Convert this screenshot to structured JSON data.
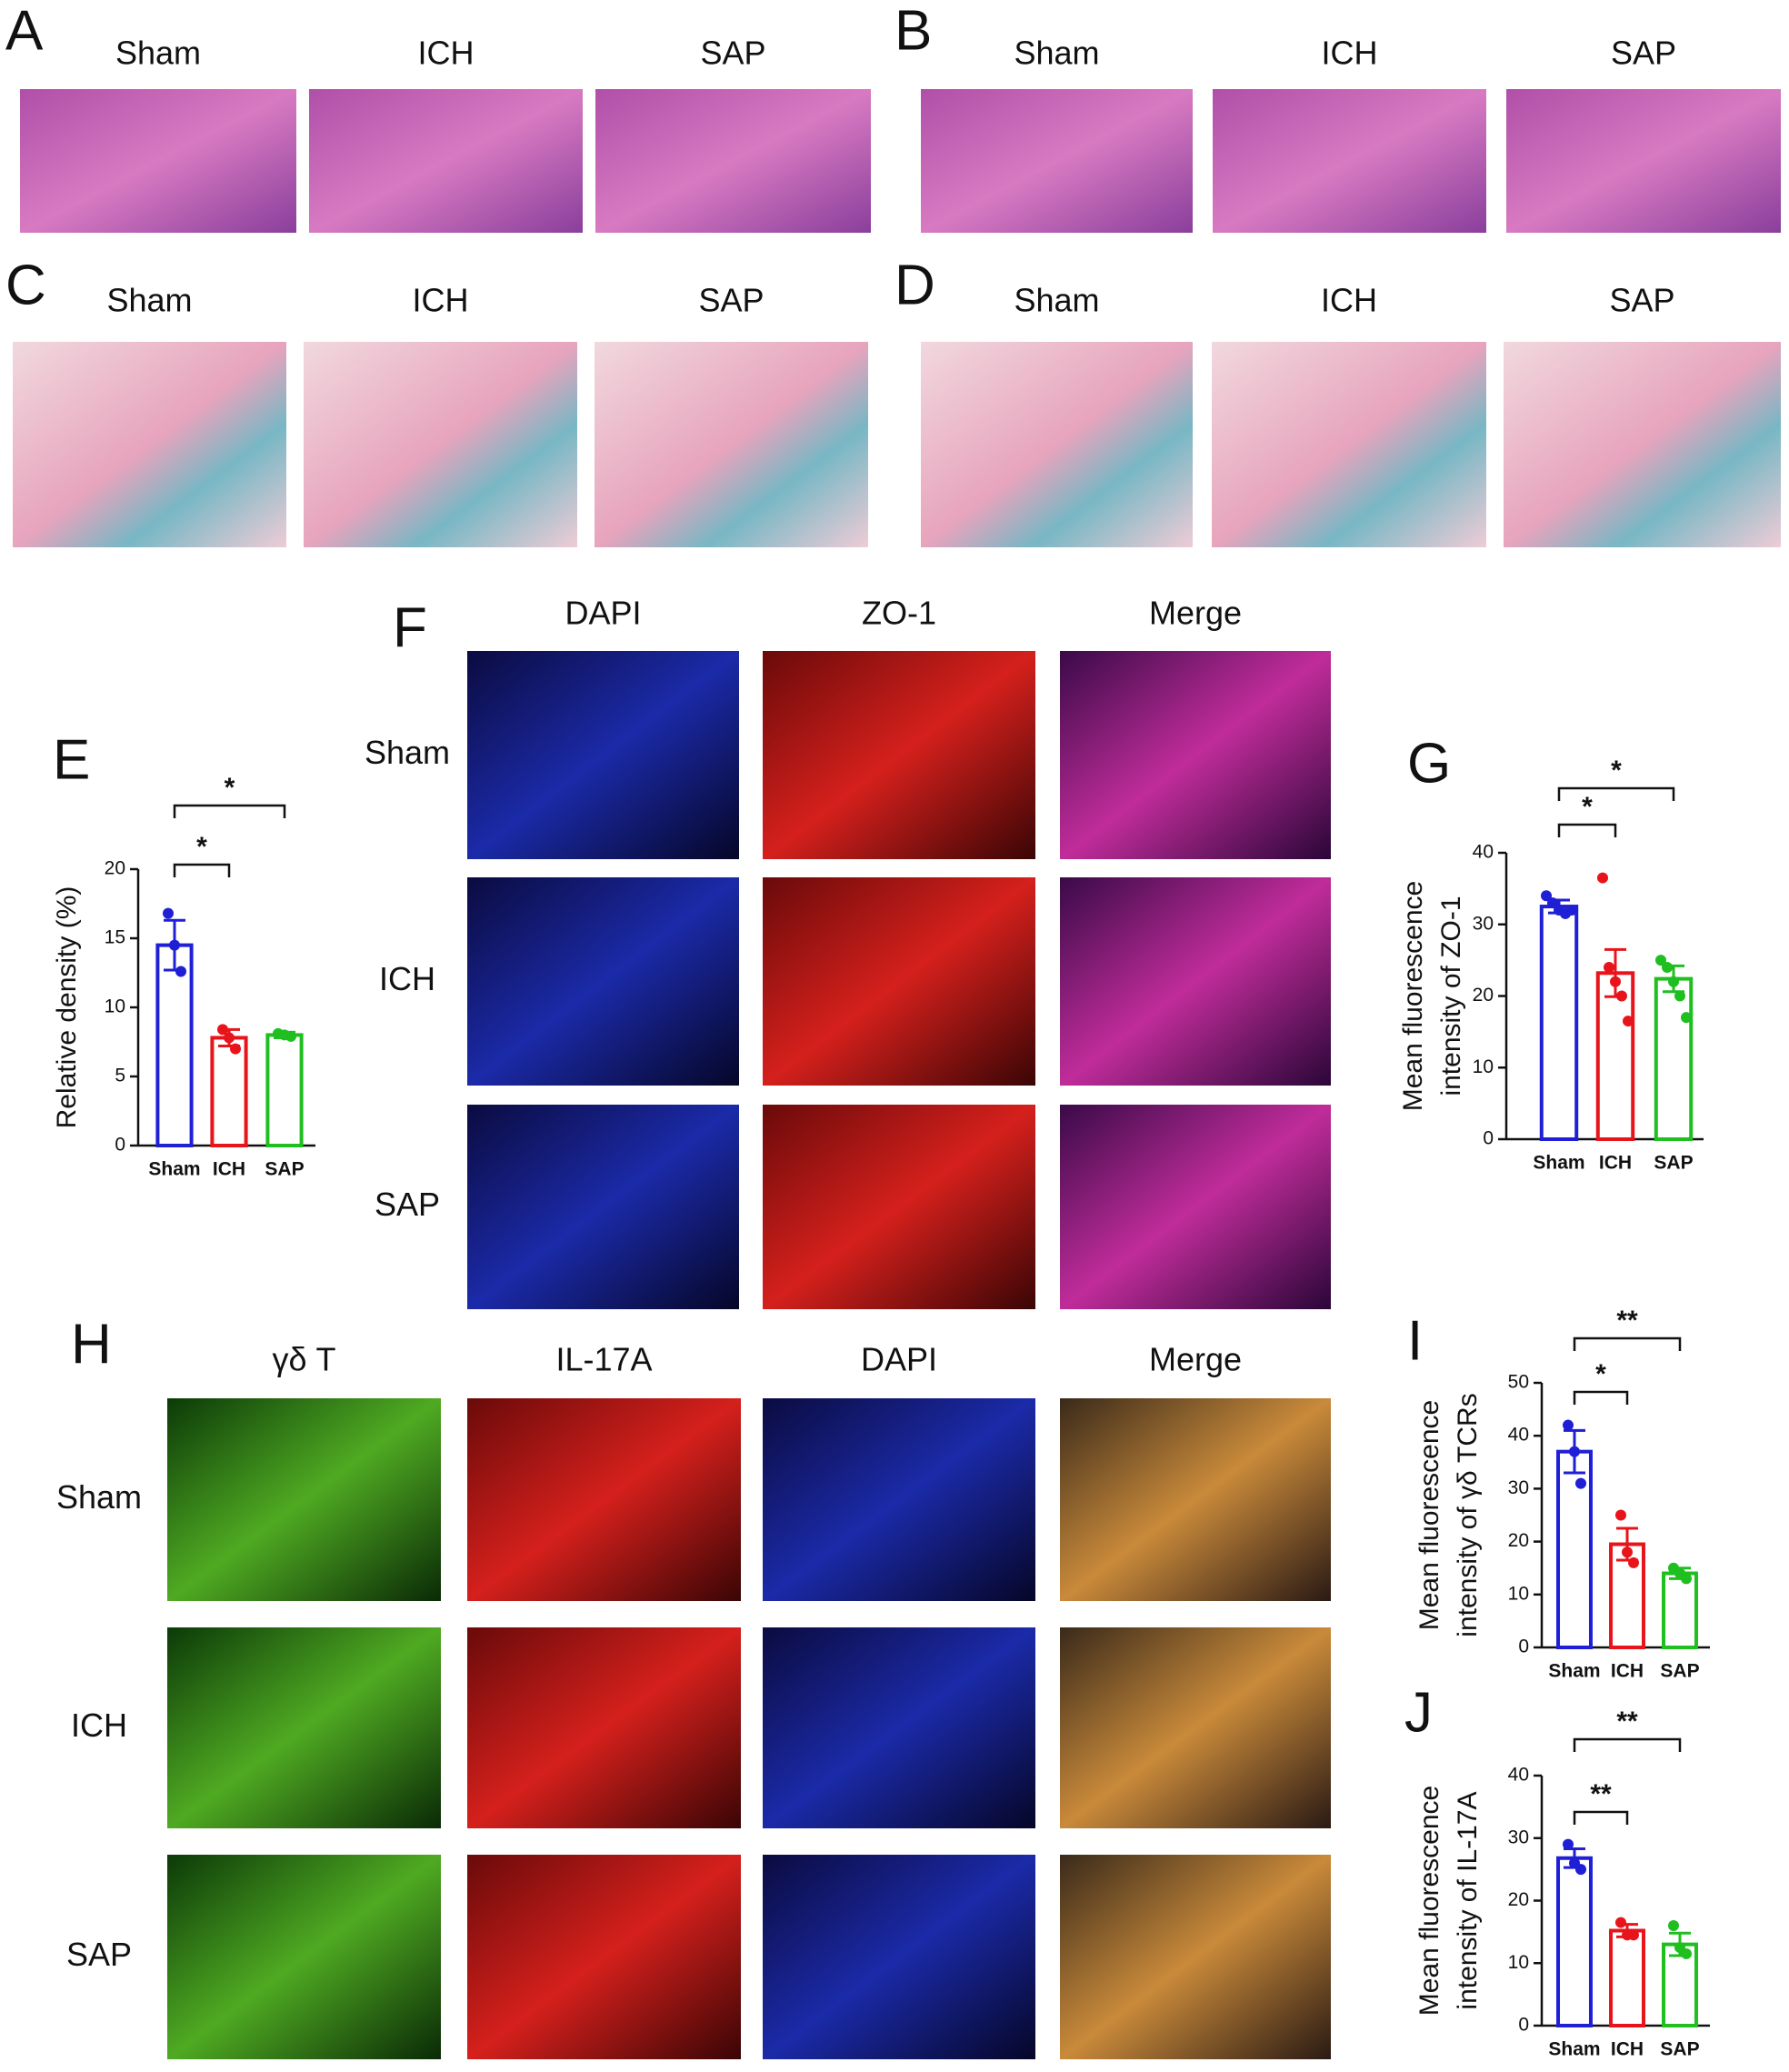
{
  "panels": {
    "A": {
      "label": "A",
      "columns": [
        "Sham",
        "ICH",
        "SAP"
      ]
    },
    "B": {
      "label": "B",
      "columns": [
        "Sham",
        "ICH",
        "SAP"
      ]
    },
    "C": {
      "label": "C",
      "columns": [
        "Sham",
        "ICH",
        "SAP"
      ]
    },
    "D": {
      "label": "D",
      "columns": [
        "Sham",
        "ICH",
        "SAP"
      ]
    },
    "F": {
      "label": "F",
      "columns": [
        "DAPI",
        "ZO-1",
        "Merge"
      ],
      "rows": [
        "Sham",
        "ICH",
        "SAP"
      ]
    },
    "H": {
      "label": "H",
      "columns": [
        "γδ T",
        "IL-17A",
        "DAPI",
        "Merge"
      ],
      "rows": [
        "Sham",
        "ICH",
        "SAP"
      ]
    }
  },
  "chart_data": [
    {
      "type": "bar",
      "label": "E",
      "ylabel": [
        "Relative density (%)"
      ],
      "categories": [
        "Sham",
        "ICH",
        "SAP"
      ],
      "colors": [
        "#1f1fd6",
        "#e8141b",
        "#1fbf1f"
      ],
      "values": [
        14.5,
        7.8,
        8.0
      ],
      "errors": [
        1.8,
        0.6,
        0.2
      ],
      "points": [
        [
          16.8,
          14.5,
          12.6
        ],
        [
          8.4,
          7.8,
          7.0
        ],
        [
          8.1,
          8.0,
          7.9
        ]
      ],
      "ylim": [
        0,
        20
      ],
      "yticks": [
        0,
        5,
        10,
        15,
        20
      ],
      "significance": [
        {
          "groups": [
            "Sham",
            "ICH"
          ],
          "label": "*"
        },
        {
          "groups": [
            "Sham",
            "SAP"
          ],
          "label": "*"
        }
      ]
    },
    {
      "type": "bar",
      "label": "G",
      "ylabel": [
        "Mean fluorescence",
        "intensity of ZO-1"
      ],
      "categories": [
        "Sham",
        "ICH",
        "SAP"
      ],
      "colors": [
        "#1f1fd6",
        "#e8141b",
        "#1fbf1f"
      ],
      "values": [
        32.5,
        23.2,
        22.4
      ],
      "errors": [
        0.9,
        3.3,
        1.8
      ],
      "points": [
        [
          34,
          33,
          32,
          31.5,
          32
        ],
        [
          36.5,
          24,
          22,
          20,
          16.5
        ],
        [
          25,
          24,
          22,
          20,
          17
        ]
      ],
      "ylim": [
        0,
        40
      ],
      "yticks": [
        0,
        10,
        20,
        30,
        40
      ],
      "significance": [
        {
          "groups": [
            "Sham",
            "ICH"
          ],
          "label": "*"
        },
        {
          "groups": [
            "Sham",
            "SAP"
          ],
          "label": "*"
        }
      ]
    },
    {
      "type": "bar",
      "label": "I",
      "ylabel": [
        "Mean fluorescence",
        "intensity of γδ TCRs"
      ],
      "categories": [
        "Sham",
        "ICH",
        "SAP"
      ],
      "colors": [
        "#1f1fd6",
        "#e8141b",
        "#1fbf1f"
      ],
      "values": [
        37,
        19.5,
        14
      ],
      "errors": [
        4,
        3,
        1
      ],
      "points": [
        [
          42,
          37,
          31
        ],
        [
          25,
          18,
          16
        ],
        [
          15,
          14,
          13
        ]
      ],
      "ylim": [
        0,
        50
      ],
      "yticks": [
        0,
        10,
        20,
        30,
        40,
        50
      ],
      "significance": [
        {
          "groups": [
            "Sham",
            "ICH"
          ],
          "label": "*"
        },
        {
          "groups": [
            "Sham",
            "SAP"
          ],
          "label": "**"
        }
      ]
    },
    {
      "type": "bar",
      "label": "J",
      "ylabel": [
        "Mean fluorescence",
        "intensity of IL-17A"
      ],
      "categories": [
        "Sham",
        "ICH",
        "SAP"
      ],
      "colors": [
        "#1f1fd6",
        "#e8141b",
        "#1fbf1f"
      ],
      "values": [
        26.8,
        15.2,
        13
      ],
      "errors": [
        1.5,
        1,
        1.8
      ],
      "points": [
        [
          29,
          26,
          25
        ],
        [
          16.5,
          14.5,
          14.5
        ],
        [
          16,
          12.5,
          11.5
        ]
      ],
      "ylim": [
        0,
        40
      ],
      "yticks": [
        0,
        10,
        20,
        30,
        40
      ],
      "significance": [
        {
          "groups": [
            "Sham",
            "ICH"
          ],
          "label": "**"
        },
        {
          "groups": [
            "Sham",
            "SAP"
          ],
          "label": "**"
        }
      ]
    }
  ]
}
